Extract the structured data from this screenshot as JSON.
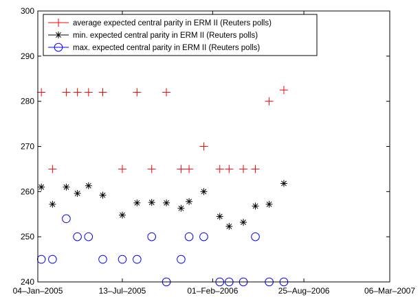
{
  "chart_data": {
    "type": "scatter",
    "xlim": [
      "2005-01-04",
      "2007-03-06"
    ],
    "ylim": [
      240,
      300
    ],
    "x_ticks": [
      {
        "date": "2005-01-04",
        "label": "04–Jan–2005"
      },
      {
        "date": "2005-07-13",
        "label": "13–Jul–2005"
      },
      {
        "date": "2006-02-01",
        "label": "01–Feb–2006"
      },
      {
        "date": "2006-08-25",
        "label": "25–Aug–2006"
      },
      {
        "date": "2007-03-06",
        "label": "06–Mar–2007"
      }
    ],
    "y_ticks": [
      240,
      250,
      260,
      270,
      280,
      290,
      300
    ],
    "grid": false,
    "legend_position": "top-left",
    "series": [
      {
        "name": "average expected central parity in ERM II (Reuters polls)",
        "marker": "plus",
        "color": "#ff0000",
        "points": [
          {
            "x": "2005-01-12",
            "y": 282
          },
          {
            "x": "2005-02-06",
            "y": 265
          },
          {
            "x": "2005-03-09",
            "y": 282
          },
          {
            "x": "2005-04-03",
            "y": 282
          },
          {
            "x": "2005-04-28",
            "y": 282
          },
          {
            "x": "2005-05-30",
            "y": 282
          },
          {
            "x": "2005-07-13",
            "y": 265
          },
          {
            "x": "2005-08-15",
            "y": 282
          },
          {
            "x": "2005-09-17",
            "y": 265
          },
          {
            "x": "2005-10-20",
            "y": 282
          },
          {
            "x": "2005-11-22",
            "y": 265
          },
          {
            "x": "2005-12-10",
            "y": 265
          },
          {
            "x": "2006-01-12",
            "y": 270
          },
          {
            "x": "2006-02-17",
            "y": 265
          },
          {
            "x": "2006-03-10",
            "y": 265
          },
          {
            "x": "2006-04-11",
            "y": 265
          },
          {
            "x": "2006-05-08",
            "y": 265
          },
          {
            "x": "2006-06-08",
            "y": 280
          },
          {
            "x": "2006-07-11",
            "y": 282.5
          }
        ]
      },
      {
        "name": "min. expected central parity in ERM II (Reuters polls)",
        "marker": "asterisk",
        "color": "#000000",
        "points": [
          {
            "x": "2005-01-12",
            "y": 261
          },
          {
            "x": "2005-02-06",
            "y": 257.2
          },
          {
            "x": "2005-03-09",
            "y": 261
          },
          {
            "x": "2005-04-03",
            "y": 259.6
          },
          {
            "x": "2005-04-28",
            "y": 261.3
          },
          {
            "x": "2005-05-30",
            "y": 259.2
          },
          {
            "x": "2005-07-13",
            "y": 254.8
          },
          {
            "x": "2005-08-15",
            "y": 257.5
          },
          {
            "x": "2005-09-17",
            "y": 257.6
          },
          {
            "x": "2005-10-20",
            "y": 257.5
          },
          {
            "x": "2005-11-22",
            "y": 256.3
          },
          {
            "x": "2005-12-10",
            "y": 257.8
          },
          {
            "x": "2006-01-12",
            "y": 260
          },
          {
            "x": "2006-02-17",
            "y": 254.5
          },
          {
            "x": "2006-03-10",
            "y": 252.3
          },
          {
            "x": "2006-04-11",
            "y": 253.2
          },
          {
            "x": "2006-05-08",
            "y": 256.8
          },
          {
            "x": "2006-06-08",
            "y": 257.2
          },
          {
            "x": "2006-07-11",
            "y": 261.8
          }
        ]
      },
      {
        "name": "max. expected central parity in ERM II (Reuters polls)",
        "marker": "circle",
        "color": "#0000ff",
        "points": [
          {
            "x": "2005-01-12",
            "y": 245
          },
          {
            "x": "2005-02-06",
            "y": 245
          },
          {
            "x": "2005-03-09",
            "y": 254
          },
          {
            "x": "2005-04-03",
            "y": 250
          },
          {
            "x": "2005-04-28",
            "y": 250
          },
          {
            "x": "2005-05-30",
            "y": 245
          },
          {
            "x": "2005-07-13",
            "y": 245
          },
          {
            "x": "2005-08-15",
            "y": 245
          },
          {
            "x": "2005-09-17",
            "y": 250
          },
          {
            "x": "2005-10-20",
            "y": 240
          },
          {
            "x": "2005-11-22",
            "y": 245
          },
          {
            "x": "2005-12-10",
            "y": 250
          },
          {
            "x": "2006-01-12",
            "y": 250
          },
          {
            "x": "2006-02-17",
            "y": 240
          },
          {
            "x": "2006-03-10",
            "y": 240
          },
          {
            "x": "2006-04-11",
            "y": 240
          },
          {
            "x": "2006-05-08",
            "y": 250
          },
          {
            "x": "2006-06-08",
            "y": 240
          },
          {
            "x": "2006-07-11",
            "y": 240
          }
        ]
      }
    ]
  }
}
